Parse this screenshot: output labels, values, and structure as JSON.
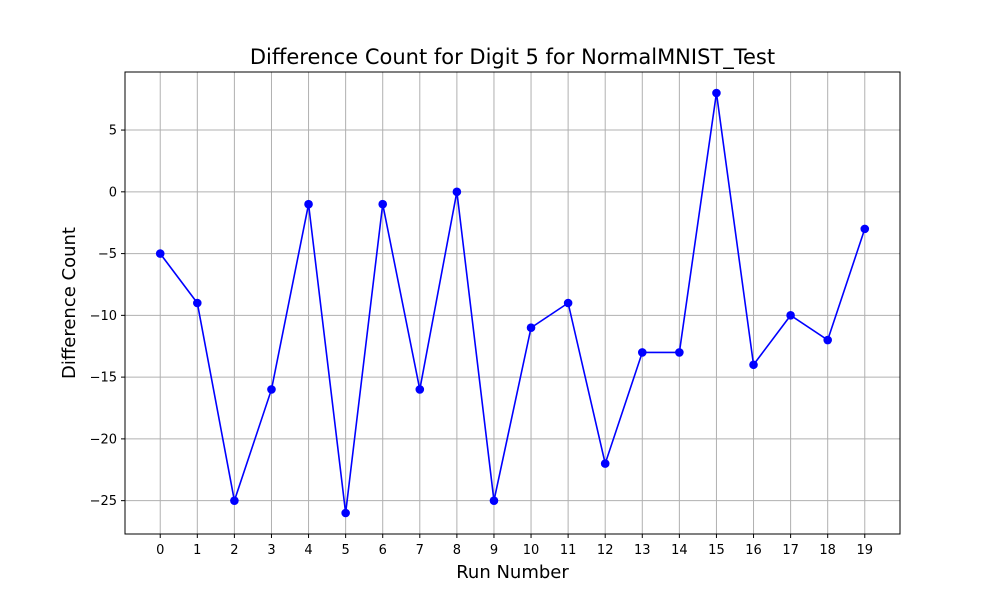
{
  "chart_data": {
    "type": "line",
    "title": "Difference Count for Digit 5 for NormalMNIST_Test",
    "xlabel": "Run Number",
    "ylabel": "Difference Count",
    "x": [
      0,
      1,
      2,
      3,
      4,
      5,
      6,
      7,
      8,
      9,
      10,
      11,
      12,
      13,
      14,
      15,
      16,
      17,
      18,
      19
    ],
    "series": [
      {
        "values": [
          -5,
          -9,
          -25,
          -16,
          -1,
          -26,
          -1,
          -16,
          0,
          -25,
          -11,
          -9,
          -22,
          -13,
          -13,
          8,
          -14,
          -10,
          -12,
          -3
        ],
        "color": "#0000ff",
        "marker": "circle"
      }
    ],
    "xticks": [
      0,
      1,
      2,
      3,
      4,
      5,
      6,
      7,
      8,
      9,
      10,
      11,
      12,
      13,
      14,
      15,
      16,
      17,
      18,
      19
    ],
    "yticks": [
      -25,
      -20,
      -15,
      -10,
      -5,
      0,
      5
    ],
    "ytick_labels": [
      "−25",
      "−20",
      "−15",
      "−10",
      "−5",
      "0",
      "5"
    ],
    "xlim": [
      -0.95,
      19.95
    ],
    "ylim": [
      -27.7,
      9.7
    ],
    "grid": true
  }
}
